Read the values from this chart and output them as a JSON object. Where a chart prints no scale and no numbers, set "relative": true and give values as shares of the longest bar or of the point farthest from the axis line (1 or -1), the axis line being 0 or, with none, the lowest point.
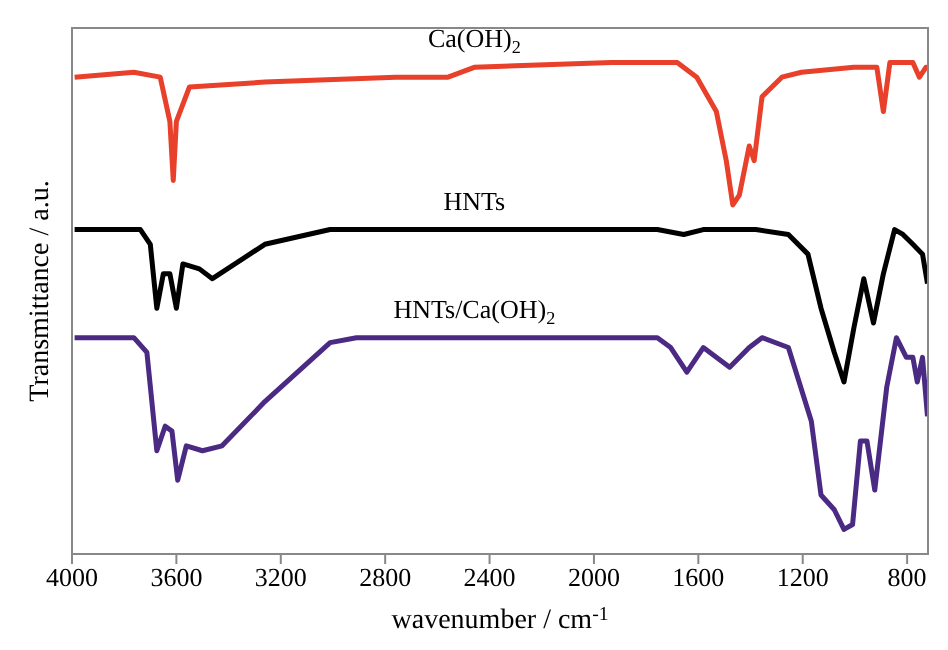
{
  "chart_data": {
    "type": "line",
    "relative": true,
    "xlabel": "wavenumber / cm$^{-1}$",
    "ylabel": "Transmittance / a.u.",
    "xlim": [
      4000,
      720
    ],
    "xticks": [
      4000,
      3600,
      3200,
      2800,
      2400,
      2000,
      1600,
      1200,
      800
    ],
    "series": [
      {
        "name": "Ca(OH)$_{2}$",
        "color": "#e8402a",
        "x": [
          3990,
          3763,
          3662,
          3625,
          3612,
          3600,
          3550,
          3261,
          2760,
          2559,
          2459,
          1932,
          1681,
          1606,
          1531,
          1493,
          1468,
          1443,
          1405,
          1386,
          1356,
          1280,
          1205,
          1004,
          916,
          891,
          866,
          778,
          753,
          728,
          722
        ],
        "values": [
          0.97,
          0.98,
          0.97,
          0.88,
          0.76,
          0.88,
          0.95,
          0.96,
          0.97,
          0.97,
          0.99,
          1.0,
          1.0,
          0.97,
          0.9,
          0.8,
          0.71,
          0.73,
          0.83,
          0.8,
          0.93,
          0.97,
          0.98,
          0.99,
          0.99,
          0.9,
          1.0,
          1.0,
          0.97,
          0.99,
          0.99
        ]
      },
      {
        "name": "HNTs",
        "color": "#000000",
        "x": [
          3990,
          3738,
          3700,
          3675,
          3650,
          3625,
          3600,
          3575,
          3512,
          3462,
          3261,
          3011,
          2334,
          1757,
          1656,
          1581,
          1380,
          1255,
          1180,
          1130,
          1079,
          1042,
          1004,
          966,
          929,
          891,
          848,
          816,
          778,
          741,
          722
        ],
        "values": [
          0.66,
          0.66,
          0.63,
          0.5,
          0.57,
          0.57,
          0.5,
          0.59,
          0.58,
          0.56,
          0.63,
          0.66,
          0.66,
          0.66,
          0.65,
          0.66,
          0.66,
          0.65,
          0.61,
          0.5,
          0.41,
          0.35,
          0.46,
          0.56,
          0.47,
          0.57,
          0.66,
          0.65,
          0.63,
          0.61,
          0.55
        ]
      },
      {
        "name": "HNTs/Ca(OH)$_{2}$",
        "color": "#4b2a84",
        "x": [
          3990,
          3763,
          3713,
          3675,
          3643,
          3617,
          3595,
          3562,
          3500,
          3425,
          3261,
          3011,
          2910,
          2258,
          1757,
          1706,
          1644,
          1581,
          1480,
          1405,
          1356,
          1255,
          1167,
          1130,
          1079,
          1042,
          1009,
          979,
          954,
          924,
          878,
          841,
          803,
          778,
          761,
          741,
          722
        ],
        "values": [
          0.44,
          0.44,
          0.41,
          0.21,
          0.26,
          0.25,
          0.15,
          0.22,
          0.21,
          0.22,
          0.31,
          0.43,
          0.44,
          0.44,
          0.44,
          0.42,
          0.37,
          0.42,
          0.38,
          0.42,
          0.44,
          0.42,
          0.27,
          0.12,
          0.09,
          0.05,
          0.06,
          0.23,
          0.23,
          0.13,
          0.34,
          0.44,
          0.4,
          0.4,
          0.35,
          0.4,
          0.28
        ]
      }
    ]
  }
}
